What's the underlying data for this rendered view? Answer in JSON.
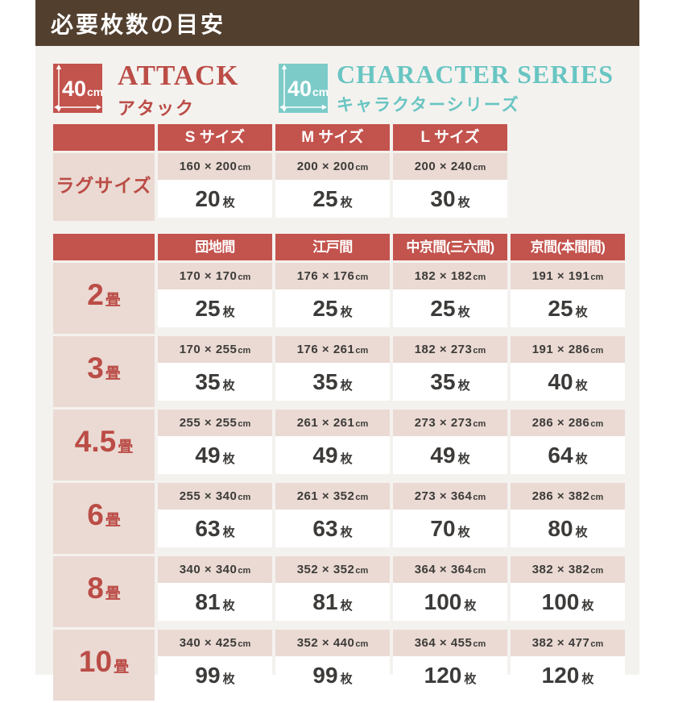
{
  "title": "必要枚数の目安",
  "products": [
    {
      "badge_value": "40",
      "badge_unit": "cm",
      "name_en": "ATTACK",
      "name_ja": "アタック",
      "color": "#c3534d"
    },
    {
      "badge_value": "40",
      "badge_unit": "cm",
      "name_en": "CHARACTER SERIES",
      "name_ja": "キャラクターシリーズ",
      "color": "#7ccbc9"
    }
  ],
  "rug_table": {
    "headers": [
      "S サイズ",
      "M サイズ",
      "L サイズ"
    ],
    "row_label": "ラグサイズ",
    "size_unit": "cm",
    "count_unit": "枚",
    "cells": [
      {
        "size": "160 × 200",
        "count": "20"
      },
      {
        "size": "200 × 200",
        "count": "25"
      },
      {
        "size": "200 × 240",
        "count": "30"
      }
    ]
  },
  "tatami_table": {
    "headers": [
      "団地間",
      "江戸間",
      "中京間(三六間)",
      "京間(本間間)"
    ],
    "size_unit": "cm",
    "count_unit": "枚",
    "rows": [
      {
        "label": "2",
        "label_unit": "畳",
        "cells": [
          {
            "size": "170 × 170",
            "count": "25"
          },
          {
            "size": "176 × 176",
            "count": "25"
          },
          {
            "size": "182 × 182",
            "count": "25"
          },
          {
            "size": "191 × 191",
            "count": "25"
          }
        ]
      },
      {
        "label": "3",
        "label_unit": "畳",
        "cells": [
          {
            "size": "170 × 255",
            "count": "35"
          },
          {
            "size": "176 × 261",
            "count": "35"
          },
          {
            "size": "182 × 273",
            "count": "35"
          },
          {
            "size": "191 × 286",
            "count": "40"
          }
        ]
      },
      {
        "label": "4.5",
        "label_unit": "畳",
        "cells": [
          {
            "size": "255 × 255",
            "count": "49"
          },
          {
            "size": "261 × 261",
            "count": "49"
          },
          {
            "size": "273 × 273",
            "count": "49"
          },
          {
            "size": "286 × 286",
            "count": "64"
          }
        ]
      },
      {
        "label": "6",
        "label_unit": "畳",
        "cells": [
          {
            "size": "255 × 340",
            "count": "63"
          },
          {
            "size": "261 × 352",
            "count": "63"
          },
          {
            "size": "273 × 364",
            "count": "70"
          },
          {
            "size": "286 × 382",
            "count": "80"
          }
        ]
      },
      {
        "label": "8",
        "label_unit": "畳",
        "cells": [
          {
            "size": "340 × 340",
            "count": "81"
          },
          {
            "size": "352 × 352",
            "count": "81"
          },
          {
            "size": "364 × 364",
            "count": "100"
          },
          {
            "size": "382 × 382",
            "count": "100"
          }
        ]
      },
      {
        "label": "10",
        "label_unit": "畳",
        "cells": [
          {
            "size": "340 × 425",
            "count": "99"
          },
          {
            "size": "352 × 440",
            "count": "99"
          },
          {
            "size": "364 × 455",
            "count": "120"
          },
          {
            "size": "382 × 477",
            "count": "120"
          }
        ]
      }
    ]
  },
  "colors": {
    "header_red": "#c3534d",
    "pink_cell": "#eadad3",
    "brown_bar": "#523f2e",
    "teal": "#7ccbc9",
    "background_gray": "#f4f2ef",
    "red_text": "#bb4c46",
    "teal_text": "#68c5c2",
    "dark_text": "#3d3b39"
  }
}
